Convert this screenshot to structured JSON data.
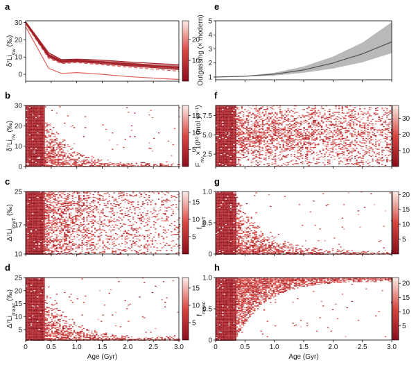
{
  "colors": {
    "cmap_low": "#8a0d1c",
    "cmap_mid": "#d9443f",
    "cmap_high": "#fbece6",
    "line_dark": "#a41f26",
    "line_light": "#e0605c",
    "band_fill": "#b9b9b9",
    "band_line": "#5a5a5a"
  },
  "chart_data": [
    {
      "panel": "a",
      "type": "line",
      "xlabel": "",
      "ylabel": "δ⁷Li_sw (‰)",
      "xlim": [
        0,
        3
      ],
      "ylim": [
        -4,
        31
      ],
      "yticks": [
        0,
        10,
        20,
        30
      ],
      "xticks": [
        0,
        0.5,
        1.0,
        1.5,
        2.0,
        2.5,
        3.0
      ],
      "xtick_labels": [
        "",
        "",
        "",
        "",
        "",
        "",
        ""
      ],
      "series": [
        {
          "name": "median",
          "style": "dashed",
          "x": [
            0,
            0.45,
            0.7,
            1.0,
            1.5,
            2.0,
            2.5,
            3.0
          ],
          "y": [
            29,
            9.2,
            6.2,
            6.8,
            5.5,
            4.2,
            3.0,
            1.8
          ]
        },
        {
          "name": "lower",
          "style": "solid",
          "x": [
            0,
            0.45,
            0.7,
            1.0,
            1.5,
            2.0,
            2.5,
            3.0
          ],
          "y": [
            27.5,
            3.5,
            0.5,
            1.0,
            0.0,
            -1.3,
            -2.2,
            -3.0
          ]
        },
        {
          "name": "upper",
          "style": "solid",
          "x": [
            0,
            0.45,
            0.7,
            1.0,
            1.5,
            2.0,
            2.5,
            3.0
          ],
          "y": [
            30.5,
            12.5,
            8.5,
            8.8,
            8.2,
            7.2,
            6.3,
            5.6
          ]
        }
      ],
      "colorbar_ticks": [
        10,
        20
      ],
      "colorbar_range": [
        0,
        29
      ]
    },
    {
      "panel": "b",
      "type": "heatmap",
      "xlabel": "",
      "ylabel": "δ⁷Li_riv (‰)",
      "xlim": [
        0,
        3
      ],
      "ylim": [
        0,
        30
      ],
      "yticks": [
        0,
        10,
        20,
        30
      ],
      "xticks": [
        0,
        0.5,
        1.0,
        1.5,
        2.0,
        2.5,
        3.0
      ],
      "xtick_labels": [
        "",
        "",
        "",
        "",
        "",
        "",
        ""
      ],
      "density_pattern": "decay",
      "colorbar_ticks": [
        5,
        10,
        15
      ],
      "colorbar_range": [
        0,
        18
      ]
    },
    {
      "panel": "c",
      "type": "heatmap",
      "xlabel": "",
      "ylabel": "Δ⁷Li_lowT (‰)",
      "xlim": [
        0,
        3
      ],
      "ylim": [
        10,
        25
      ],
      "yticks": [
        10,
        17,
        25
      ],
      "xticks": [
        0,
        0.5,
        1.0,
        1.5,
        2.0,
        2.5,
        3.0
      ],
      "xtick_labels": [
        "",
        "",
        "",
        "",
        "",
        "",
        ""
      ],
      "density_pattern": "uniform",
      "colorbar_ticks": [
        5,
        10,
        15
      ],
      "colorbar_range": [
        0,
        18
      ]
    },
    {
      "panel": "d",
      "type": "heatmap",
      "xlabel": "Age (Gyr)",
      "ylabel": "Δ⁷Li_maac (‰)",
      "xlim": [
        0,
        3
      ],
      "ylim": [
        1,
        25
      ],
      "yticks": [
        5,
        10,
        15,
        20,
        25
      ],
      "xticks": [
        0,
        0.5,
        1.0,
        1.5,
        2.0,
        2.5,
        3.0
      ],
      "xtick_labels": [
        "0",
        "0.5",
        "1.0",
        "1.5",
        "2.0",
        "2.5",
        "3.0"
      ],
      "density_pattern": "decay",
      "colorbar_ticks": [
        5,
        10,
        15
      ],
      "colorbar_range": [
        0,
        18
      ]
    },
    {
      "panel": "e",
      "type": "line",
      "xlabel": "",
      "ylabel": "Outgassing (× modern)",
      "xlim": [
        0,
        3
      ],
      "ylim": [
        0.8,
        5
      ],
      "yticks": [
        1,
        2,
        3,
        4,
        5
      ],
      "xticks": [
        0,
        0.5,
        1.0,
        1.5,
        2.0,
        2.5,
        3.0
      ],
      "xtick_labels": [
        "",
        "",
        "",
        "",
        "",
        "",
        ""
      ],
      "series": [
        {
          "name": "median",
          "x": [
            0,
            0.5,
            1.0,
            1.5,
            2.0,
            2.5,
            3.0
          ],
          "y": [
            1.0,
            1.05,
            1.2,
            1.5,
            2.0,
            2.65,
            3.5
          ]
        },
        {
          "name": "lower",
          "x": [
            0,
            0.5,
            1.0,
            1.5,
            2.0,
            2.5,
            3.0
          ],
          "y": [
            1.0,
            1.03,
            1.1,
            1.3,
            1.6,
            2.05,
            2.7
          ]
        },
        {
          "name": "upper",
          "x": [
            0,
            0.5,
            1.0,
            1.5,
            2.0,
            2.5,
            3.0
          ],
          "y": [
            1.0,
            1.07,
            1.3,
            1.75,
            2.45,
            3.45,
            4.9
          ]
        }
      ]
    },
    {
      "panel": "f",
      "type": "heatmap",
      "xlabel": "",
      "ylabel": "F_riv × 10¹⁰ (mol yr⁻¹)",
      "xlim": [
        0,
        3
      ],
      "ylim": [
        0.9,
        8.8
      ],
      "yticks": [
        2.5,
        5.0,
        7.5
      ],
      "ytick_labels": [
        "2.5",
        "5.0",
        "7.5"
      ],
      "xticks": [
        0,
        0.5,
        1.0,
        1.5,
        2.0,
        2.5,
        3.0
      ],
      "xtick_labels": [
        "",
        "",
        "",
        "",
        "",
        "",
        ""
      ],
      "density_pattern": "cloud",
      "colorbar_ticks": [
        10,
        20,
        30
      ],
      "colorbar_range": [
        0,
        38
      ]
    },
    {
      "panel": "g",
      "type": "heatmap",
      "xlabel": "",
      "ylabel": "f_lowT",
      "xlim": [
        0,
        3
      ],
      "ylim": [
        0,
        1
      ],
      "yticks": [
        0,
        0.5,
        1.0
      ],
      "ytick_labels": [
        "0",
        "0.5",
        "1.0"
      ],
      "xticks": [
        0,
        0.5,
        1.0,
        1.5,
        2.0,
        2.5,
        3.0
      ],
      "xtick_labels": [
        "",
        "",
        "",
        "",
        "",
        "",
        ""
      ],
      "density_pattern": "decay",
      "colorbar_ticks": [
        5,
        10,
        15,
        20
      ],
      "colorbar_range": [
        0,
        21
      ]
    },
    {
      "panel": "h",
      "type": "heatmap",
      "xlabel": "Age (Gyr)",
      "ylabel": "f_maac",
      "xlim": [
        0,
        3
      ],
      "ylim": [
        0,
        1
      ],
      "yticks": [
        0,
        0.5,
        1.0
      ],
      "ytick_labels": [
        "0",
        "0.5",
        "1.0"
      ],
      "xticks": [
        0,
        0.5,
        1.0,
        1.5,
        2.0,
        2.5,
        3.0
      ],
      "xtick_labels": [
        "0",
        "0.5",
        "1.0",
        "1.5",
        "2.0",
        "2.5",
        "3.0"
      ],
      "density_pattern": "rise",
      "colorbar_ticks": [
        5,
        10,
        15,
        20
      ],
      "colorbar_range": [
        0,
        22
      ]
    }
  ]
}
